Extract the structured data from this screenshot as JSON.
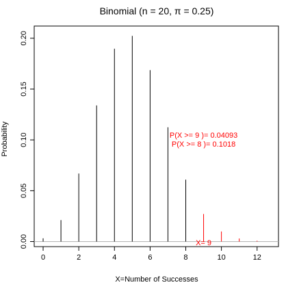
{
  "chart_data": {
    "type": "bar",
    "title": "Binomial (n = 20, π = 0.25)",
    "xlabel": "X=Number of Successes",
    "ylabel": "Probability",
    "xlim": [
      -0.5,
      13.2
    ],
    "ylim": [
      -0.005,
      0.212
    ],
    "xticks": [
      0,
      2,
      4,
      6,
      8,
      10,
      12
    ],
    "yticks": [
      0.0,
      0.05,
      0.1,
      0.15,
      0.2
    ],
    "ytick_labels": [
      "0.00",
      "0.05",
      "0.10",
      "0.15",
      "0.20"
    ],
    "baseline": 0,
    "grid": false,
    "series": [
      {
        "color": "#000000",
        "x": [
          0,
          1,
          2,
          3,
          4,
          5,
          6,
          7,
          8
        ],
        "values": [
          0.0032,
          0.0211,
          0.0669,
          0.1339,
          0.1897,
          0.2023,
          0.1686,
          0.1124,
          0.0609
        ]
      },
      {
        "color": "#ff0000",
        "x": [
          9,
          10,
          11,
          12
        ],
        "values": [
          0.0271,
          0.0099,
          0.003,
          0.0008
        ]
      }
    ],
    "annotations": [
      {
        "text": "P(X >= 9 )= 0.04093",
        "x": 9.0,
        "y": 0.105,
        "color": "#ff0000"
      },
      {
        "text": "P(X >= 8 )= 0.1018",
        "x": 9.0,
        "y": 0.096,
        "color": "#ff0000"
      },
      {
        "text": "X= 9",
        "x": 9.0,
        "y": -0.001,
        "color": "#ff0000"
      }
    ]
  }
}
